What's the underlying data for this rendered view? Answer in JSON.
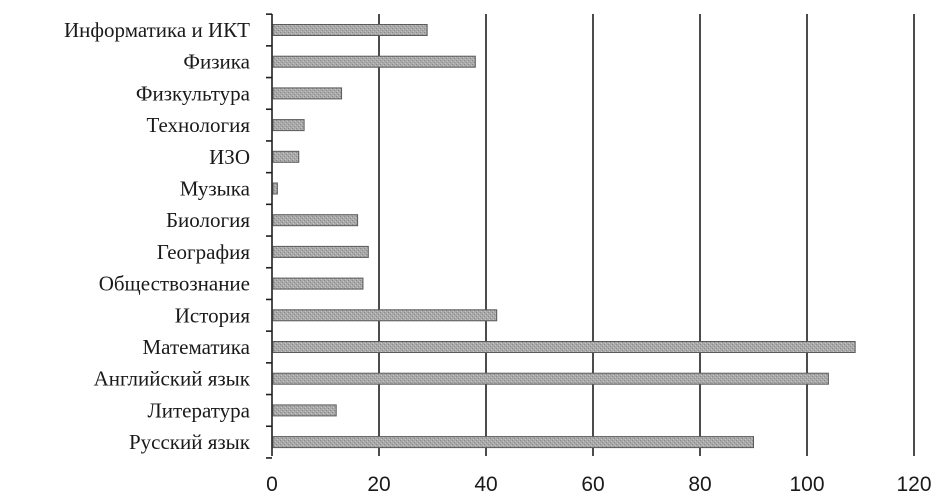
{
  "chart_data": {
    "type": "bar",
    "orientation": "horizontal",
    "title": "",
    "xlabel": "",
    "ylabel": "",
    "categories": [
      "Информатика и ИКТ",
      "Физика",
      "Физкультура",
      "Технология",
      "ИЗО",
      "Музыка",
      "Биология",
      "География",
      "Обществознание",
      "История",
      "Математика",
      "Английский язык",
      "Литература",
      "Русский язык"
    ],
    "values": [
      29,
      38,
      13,
      6,
      5,
      1,
      16,
      18,
      17,
      42,
      109,
      104,
      12,
      90
    ],
    "xlim": [
      0,
      120
    ],
    "xticks": [
      0,
      20,
      40,
      60,
      80,
      100,
      120
    ],
    "grid": "vertical",
    "legend": "none",
    "colors": {
      "bar_fill": "#a9a9a9",
      "bar_stroke": "#5a5a5a",
      "grid": "#1f1f1f"
    }
  }
}
